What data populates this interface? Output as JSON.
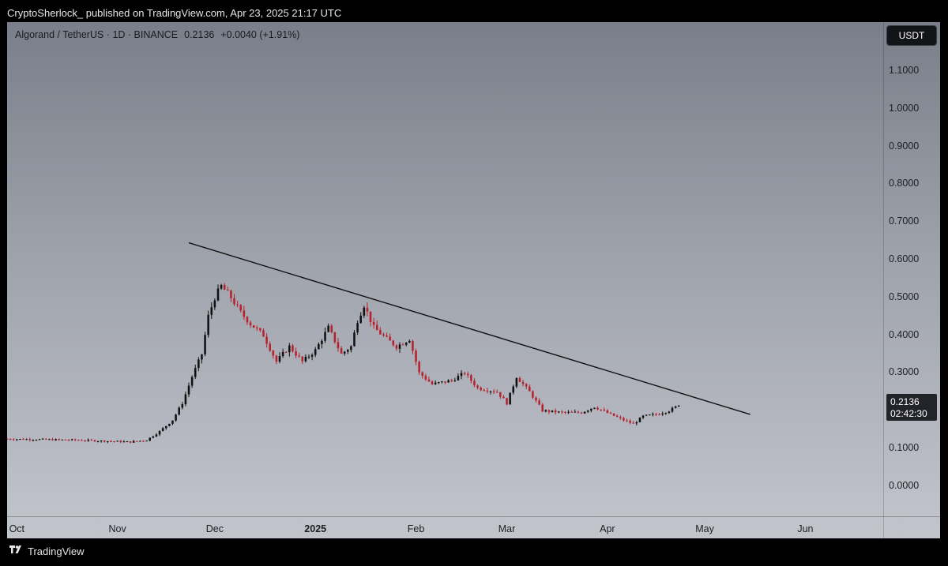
{
  "header": {
    "text": "CryptoSherlock_ published on TradingView.com, Apr 23, 2025 21:17 UTC"
  },
  "legend": {
    "symbol": "Algorand / TetherUS · 1D · BINANCE",
    "last": "0.2136",
    "change": "+0.0040 (+1.91%)"
  },
  "currency_button": "USDT",
  "price_tag": {
    "price": "0.2136",
    "countdown": "02:42:30"
  },
  "footer": {
    "brand": "TradingView"
  },
  "colors": {
    "up": "#111111",
    "down": "#b5222e",
    "trendline": "#111111"
  },
  "chart_data": {
    "type": "candlestick",
    "title": "Algorand / TetherUS · 1D · BINANCE",
    "ylim": [
      -0.08,
      1.23
    ],
    "y_ticks": [
      "1.1000",
      "1.0000",
      "0.9000",
      "0.8000",
      "0.7000",
      "0.6000",
      "0.5000",
      "0.4000",
      "0.3000",
      "0.2000",
      "0.1000",
      "0.0000"
    ],
    "x_ticks": [
      {
        "label": "Oct",
        "date": "2024-10-01",
        "bold": false
      },
      {
        "label": "Nov",
        "date": "2024-11-01",
        "bold": false
      },
      {
        "label": "Dec",
        "date": "2024-12-01",
        "bold": false
      },
      {
        "label": "2025",
        "date": "2025-01-01",
        "bold": true
      },
      {
        "label": "Feb",
        "date": "2025-02-01",
        "bold": false
      },
      {
        "label": "Mar",
        "date": "2025-03-01",
        "bold": false
      },
      {
        "label": "Apr",
        "date": "2025-04-01",
        "bold": false
      },
      {
        "label": "May",
        "date": "2025-05-01",
        "bold": false
      },
      {
        "label": "Jun",
        "date": "2025-06-01",
        "bold": false
      }
    ],
    "x_range": [
      "2024-09-28",
      "2025-06-25"
    ],
    "close_path": [
      [
        "2024-09-28",
        0.125
      ],
      [
        "2024-10-20",
        0.122
      ],
      [
        "2024-11-05",
        0.117
      ],
      [
        "2024-11-10",
        0.122
      ],
      [
        "2024-11-14",
        0.145
      ],
      [
        "2024-11-18",
        0.175
      ],
      [
        "2024-11-21",
        0.22
      ],
      [
        "2024-11-24",
        0.29
      ],
      [
        "2024-11-27",
        0.35
      ],
      [
        "2024-11-29",
        0.45
      ],
      [
        "2024-12-01",
        0.5
      ],
      [
        "2024-12-03",
        0.53
      ],
      [
        "2024-12-06",
        0.5
      ],
      [
        "2024-12-09",
        0.46
      ],
      [
        "2024-12-12",
        0.43
      ],
      [
        "2024-12-16",
        0.4
      ],
      [
        "2024-12-20",
        0.33
      ],
      [
        "2024-12-24",
        0.37
      ],
      [
        "2024-12-28",
        0.33
      ],
      [
        "2025-01-01",
        0.36
      ],
      [
        "2025-01-05",
        0.42
      ],
      [
        "2025-01-09",
        0.35
      ],
      [
        "2025-01-12",
        0.37
      ],
      [
        "2025-01-14",
        0.44
      ],
      [
        "2025-01-16",
        0.48
      ],
      [
        "2025-01-19",
        0.42
      ],
      [
        "2025-01-23",
        0.39
      ],
      [
        "2025-01-26",
        0.37
      ],
      [
        "2025-01-30",
        0.39
      ],
      [
        "2025-02-02",
        0.3
      ],
      [
        "2025-02-06",
        0.27
      ],
      [
        "2025-02-12",
        0.28
      ],
      [
        "2025-02-16",
        0.3
      ],
      [
        "2025-02-20",
        0.26
      ],
      [
        "2025-02-26",
        0.25
      ],
      [
        "2025-03-01",
        0.22
      ],
      [
        "2025-03-04",
        0.29
      ],
      [
        "2025-03-08",
        0.25
      ],
      [
        "2025-03-12",
        0.2
      ],
      [
        "2025-03-18",
        0.195
      ],
      [
        "2025-03-24",
        0.195
      ],
      [
        "2025-03-28",
        0.21
      ],
      [
        "2025-04-02",
        0.19
      ],
      [
        "2025-04-06",
        0.175
      ],
      [
        "2025-04-09",
        0.165
      ],
      [
        "2025-04-12",
        0.185
      ],
      [
        "2025-04-16",
        0.19
      ],
      [
        "2025-04-20",
        0.2
      ],
      [
        "2025-04-23",
        0.2136
      ]
    ],
    "trendline": {
      "start": [
        "2024-11-23",
        0.645
      ],
      "end": [
        "2025-05-15",
        0.19
      ]
    }
  }
}
